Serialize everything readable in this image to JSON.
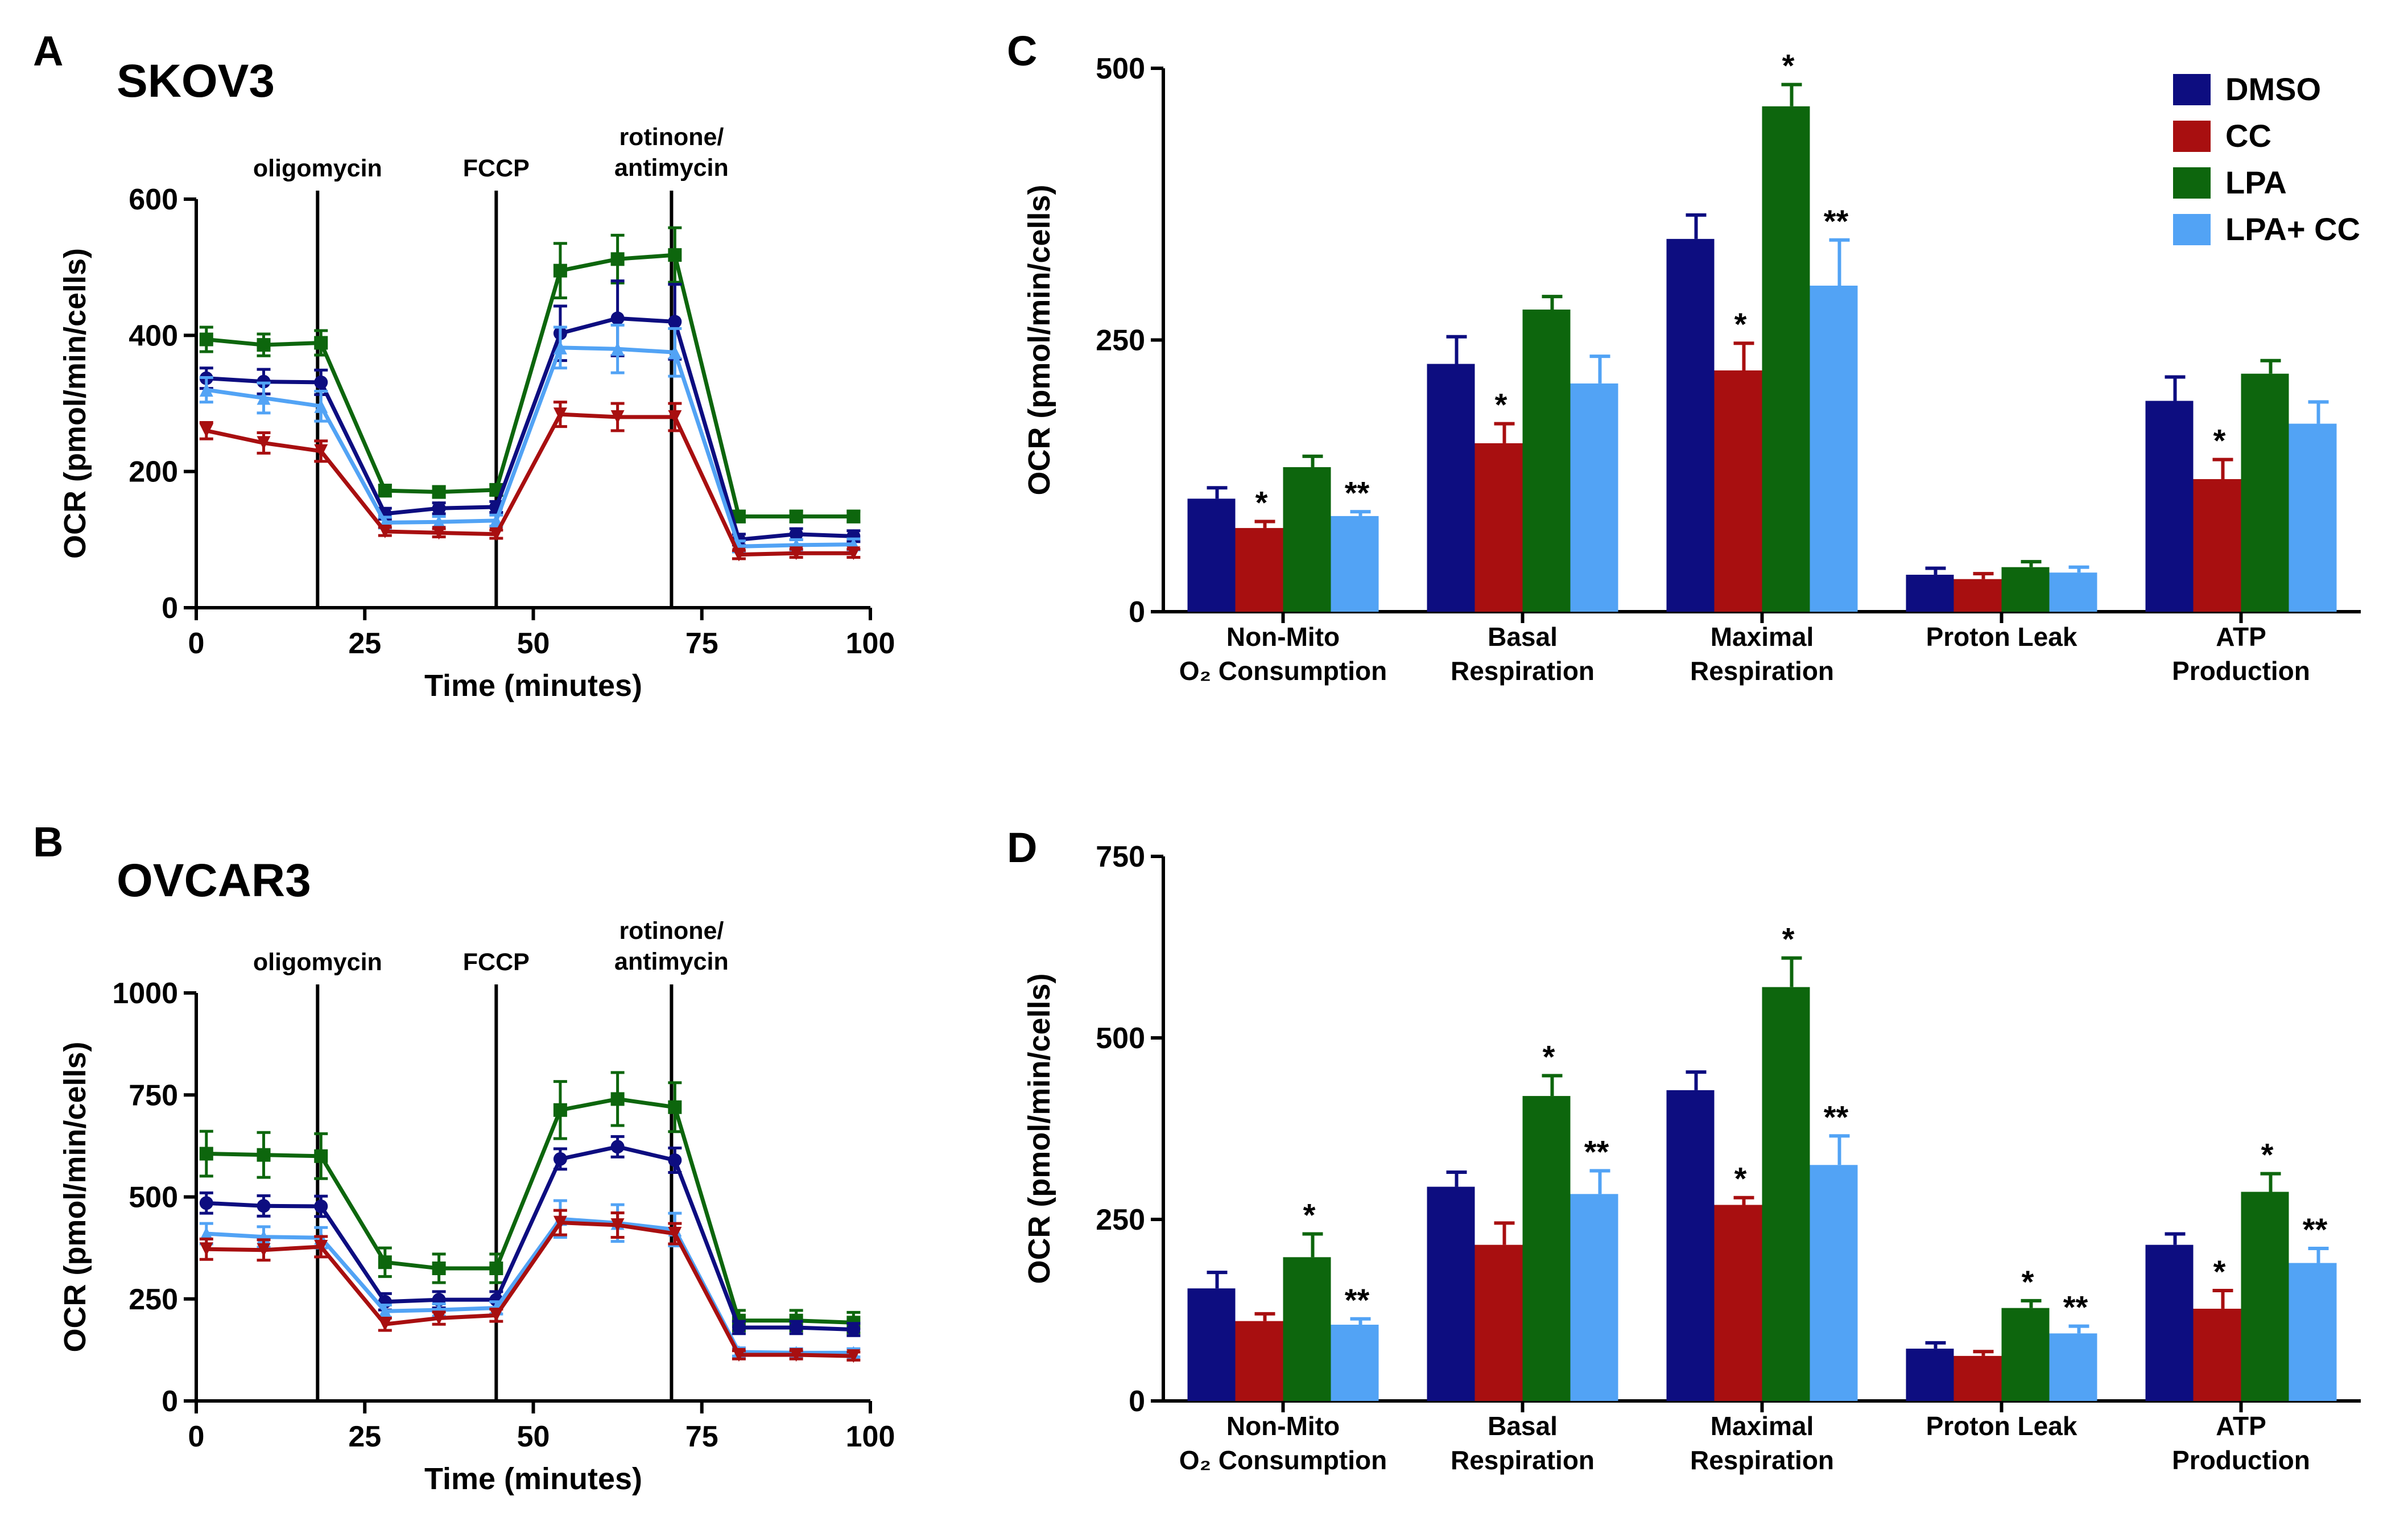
{
  "colors": {
    "DMSO": "#0d0d80",
    "CC": "#a80f10",
    "LPA": "#0d660d",
    "LPA+ CC": "#52a3f5"
  },
  "chart_data": [
    {
      "type": "line",
      "panel": "A",
      "title": "SKOV3",
      "xlabel": "Time (minutes)",
      "ylabel": "OCR (pmol/min/cells)",
      "xlim": [
        0,
        100
      ],
      "ylim": [
        0,
        600
      ],
      "xticks": [
        "0",
        "25",
        "50",
        "75",
        "100"
      ],
      "yticks": [
        "0",
        "200",
        "400",
        "600"
      ],
      "x": [
        1.5,
        10,
        18.5,
        28,
        36,
        44.5,
        54,
        62.5,
        71,
        80.5,
        89,
        97.5
      ],
      "injections": [
        {
          "x": 18,
          "lines": [
            "oligomycin"
          ]
        },
        {
          "x": 44.5,
          "lines": [
            "FCCP"
          ]
        },
        {
          "x": 70.5,
          "lines": [
            "rotinone/",
            "antimycin"
          ]
        }
      ],
      "series": [
        {
          "name": "LPA",
          "marker": "square",
          "values": [
            394,
            386,
            389,
            172,
            170,
            173,
            495,
            512,
            518,
            134,
            134,
            134
          ],
          "errors": [
            18,
            16,
            18,
            8,
            8,
            8,
            40,
            35,
            40,
            8,
            8,
            8
          ]
        },
        {
          "name": "DMSO",
          "marker": "circle",
          "values": [
            337,
            332,
            331,
            138,
            146,
            148,
            403,
            425,
            420,
            100,
            108,
            105
          ],
          "errors": [
            15,
            18,
            18,
            8,
            8,
            8,
            40,
            55,
            55,
            8,
            8,
            8
          ]
        },
        {
          "name": "LPA+ CC",
          "marker": "triangle-up",
          "values": [
            320,
            308,
            296,
            125,
            126,
            128,
            382,
            380,
            375,
            90,
            92,
            93
          ],
          "errors": [
            18,
            22,
            22,
            8,
            8,
            8,
            30,
            35,
            35,
            8,
            8,
            8
          ]
        },
        {
          "name": "CC",
          "marker": "triangle-down",
          "values": [
            260,
            242,
            230,
            112,
            110,
            108,
            284,
            280,
            280,
            78,
            80,
            80
          ],
          "errors": [
            12,
            15,
            15,
            6,
            6,
            6,
            18,
            20,
            20,
            6,
            6,
            6
          ]
        }
      ]
    },
    {
      "type": "line",
      "panel": "B",
      "title": "OVCAR3",
      "xlabel": "Time (minutes)",
      "ylabel": "OCR (pmol/min/cells)",
      "xlim": [
        0,
        100
      ],
      "ylim": [
        0,
        1000
      ],
      "xticks": [
        "0",
        "25",
        "50",
        "75",
        "100"
      ],
      "yticks": [
        "0",
        "250",
        "500",
        "750",
        "1000"
      ],
      "x": [
        1.5,
        10,
        18.5,
        28,
        36,
        44.5,
        54,
        62.5,
        71,
        80.5,
        89,
        97.5
      ],
      "injections": [
        {
          "x": 18,
          "lines": [
            "oligomycin"
          ]
        },
        {
          "x": 44.5,
          "lines": [
            "FCCP"
          ]
        },
        {
          "x": 70.5,
          "lines": [
            "rotinone/",
            "antimycin"
          ]
        }
      ],
      "series": [
        {
          "name": "LPA",
          "marker": "square",
          "values": [
            606,
            603,
            600,
            340,
            325,
            325,
            713,
            740,
            720,
            197,
            197,
            192
          ],
          "errors": [
            55,
            55,
            55,
            35,
            35,
            35,
            70,
            65,
            60,
            25,
            25,
            25
          ]
        },
        {
          "name": "DMSO",
          "marker": "circle",
          "values": [
            485,
            478,
            477,
            243,
            248,
            248,
            593,
            623,
            590,
            180,
            180,
            175
          ],
          "errors": [
            25,
            25,
            25,
            20,
            20,
            20,
            25,
            25,
            30,
            15,
            15,
            15
          ]
        },
        {
          "name": "LPA+ CC",
          "marker": "triangle-up",
          "values": [
            410,
            402,
            400,
            220,
            223,
            228,
            446,
            436,
            420,
            120,
            118,
            118
          ],
          "errors": [
            25,
            25,
            25,
            15,
            15,
            15,
            45,
            45,
            40,
            10,
            10,
            10
          ]
        },
        {
          "name": "CC",
          "marker": "triangle-down",
          "values": [
            372,
            370,
            378,
            188,
            203,
            210,
            437,
            431,
            410,
            113,
            113,
            110
          ],
          "errors": [
            25,
            25,
            25,
            15,
            15,
            15,
            30,
            30,
            25,
            10,
            10,
            10
          ]
        }
      ]
    },
    {
      "type": "bar",
      "panel": "C",
      "ylabel": "OCR (pmol/min/cells)",
      "ylim": [
        0,
        500
      ],
      "yticks": [
        "0",
        "250",
        "500"
      ],
      "categories": [
        [
          "Non-Mito",
          "O₂ Consumption"
        ],
        [
          "Basal",
          "Respiration"
        ],
        [
          "Maximal",
          "Respiration"
        ],
        [
          "Proton Leak"
        ],
        [
          "ATP",
          "Production"
        ]
      ],
      "legend": [
        "DMSO",
        "CC",
        "LPA",
        "LPA+ CC"
      ],
      "series": [
        {
          "name": "DMSO",
          "values": [
            104,
            228,
            343,
            34,
            194
          ],
          "errors": [
            10,
            25,
            22,
            6,
            22
          ],
          "sig": [
            "",
            "",
            "",
            "",
            ""
          ]
        },
        {
          "name": "CC",
          "values": [
            77,
            155,
            222,
            30,
            122
          ],
          "errors": [
            6,
            18,
            25,
            5,
            18
          ],
          "sig": [
            "*",
            "*",
            "*",
            "",
            "*"
          ]
        },
        {
          "name": "LPA",
          "values": [
            133,
            278,
            465,
            41,
            219
          ],
          "errors": [
            10,
            12,
            20,
            5,
            12
          ],
          "sig": [
            "",
            "",
            "*",
            "",
            ""
          ]
        },
        {
          "name": "LPA+ CC",
          "values": [
            88,
            210,
            300,
            36,
            173
          ],
          "errors": [
            4,
            25,
            42,
            5,
            20
          ],
          "sig": [
            "**",
            "",
            "**",
            "",
            ""
          ]
        }
      ]
    },
    {
      "type": "bar",
      "panel": "D",
      "ylabel": "OCR (pmol/min/cells)",
      "ylim": [
        0,
        750
      ],
      "yticks": [
        "0",
        "250",
        "500",
        "750"
      ],
      "categories": [
        [
          "Non-Mito",
          "O₂ Consumption"
        ],
        [
          "Basal",
          "Respiration"
        ],
        [
          "Maximal",
          "Respiration"
        ],
        [
          "Proton Leak"
        ],
        [
          "ATP",
          "Production"
        ]
      ],
      "series": [
        {
          "name": "DMSO",
          "values": [
            155,
            295,
            428,
            72,
            215
          ],
          "errors": [
            22,
            20,
            25,
            8,
            15
          ],
          "sig": [
            "",
            "",
            "",
            "",
            ""
          ]
        },
        {
          "name": "CC",
          "values": [
            110,
            215,
            270,
            62,
            127
          ],
          "errors": [
            10,
            30,
            10,
            6,
            25
          ],
          "sig": [
            "",
            "",
            "*",
            "",
            "*"
          ]
        },
        {
          "name": "LPA",
          "values": [
            198,
            420,
            570,
            128,
            288
          ],
          "errors": [
            32,
            28,
            40,
            10,
            25
          ],
          "sig": [
            "*",
            "*",
            "*",
            "*",
            "*"
          ]
        },
        {
          "name": "LPA+ CC",
          "values": [
            105,
            285,
            325,
            93,
            190
          ],
          "errors": [
            8,
            32,
            40,
            10,
            20
          ],
          "sig": [
            "**",
            "**",
            "**",
            "**",
            "**"
          ]
        }
      ]
    }
  ]
}
